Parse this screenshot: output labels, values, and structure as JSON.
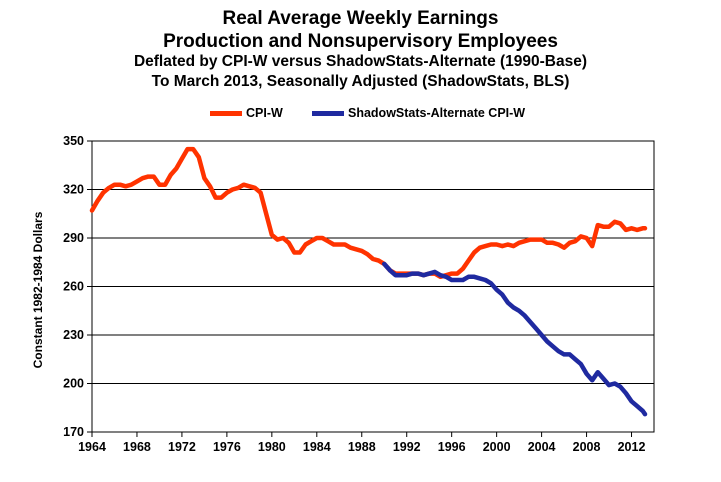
{
  "chart_data": {
    "type": "line",
    "title": "Real Average Weekly Earnings",
    "subtitle_lines": [
      "Production and Nonsupervisory Employees",
      "Deflated by CPI-W versus ShadowStats-Alternate (1990-Base)",
      "To March 2013, Seasonally Adjusted (ShadowStats, BLS)"
    ],
    "xlabel": "",
    "ylabel": "Constant 1982-1984 Dollars",
    "xlim": [
      1964,
      2014
    ],
    "ylim": [
      170,
      350
    ],
    "x_ticks": [
      1964,
      1968,
      1972,
      1976,
      1980,
      1984,
      1988,
      1992,
      1996,
      2000,
      2004,
      2008,
      2012
    ],
    "y_ticks": [
      170,
      200,
      230,
      260,
      290,
      320,
      350
    ],
    "grid": "horizontal",
    "legend_position": "top-center",
    "series": [
      {
        "name": "CPI-W",
        "color": "#ff3300",
        "x": [
          1964.0,
          1964.5,
          1965.0,
          1965.5,
          1966.0,
          1966.5,
          1967.0,
          1967.5,
          1968.0,
          1968.5,
          1969.0,
          1969.5,
          1970.0,
          1970.5,
          1971.0,
          1971.5,
          1972.0,
          1972.5,
          1973.0,
          1973.5,
          1974.0,
          1974.5,
          1975.0,
          1975.5,
          1976.0,
          1976.5,
          1977.0,
          1977.5,
          1978.0,
          1978.5,
          1979.0,
          1979.5,
          1980.0,
          1980.5,
          1981.0,
          1981.5,
          1982.0,
          1982.5,
          1983.0,
          1983.5,
          1984.0,
          1984.5,
          1985.0,
          1985.5,
          1986.0,
          1986.5,
          1987.0,
          1987.5,
          1988.0,
          1988.5,
          1989.0,
          1989.5,
          1990.0,
          1990.5,
          1991.0,
          1991.5,
          1992.0,
          1992.5,
          1993.0,
          1993.5,
          1994.0,
          1994.5,
          1995.0,
          1995.5,
          1996.0,
          1996.5,
          1997.0,
          1997.5,
          1998.0,
          1998.5,
          1999.0,
          1999.5,
          2000.0,
          2000.5,
          2001.0,
          2001.5,
          2002.0,
          2002.5,
          2003.0,
          2003.5,
          2004.0,
          2004.5,
          2005.0,
          2005.5,
          2006.0,
          2006.5,
          2007.0,
          2007.5,
          2008.0,
          2008.5,
          2009.0,
          2009.5,
          2010.0,
          2010.5,
          2011.0,
          2011.5,
          2012.0,
          2012.5,
          2013.0,
          2013.2
        ],
        "values": [
          307,
          313,
          318,
          321,
          323,
          323,
          322,
          323,
          325,
          327,
          328,
          328,
          323,
          323,
          329,
          333,
          339,
          345,
          345,
          340,
          327,
          322,
          315,
          315,
          318,
          320,
          321,
          323,
          322,
          321,
          318,
          305,
          292,
          289,
          290,
          287,
          281,
          281,
          286,
          288,
          290,
          290,
          288,
          286,
          286,
          286,
          284,
          283,
          282,
          280,
          277,
          276,
          274,
          270,
          268,
          268,
          268,
          268,
          268,
          267,
          268,
          268,
          266,
          267,
          268,
          268,
          271,
          276,
          281,
          284,
          285,
          286,
          286,
          285,
          286,
          285,
          287,
          288,
          289,
          289,
          289,
          287,
          287,
          286,
          284,
          287,
          288,
          291,
          290,
          285,
          298,
          297,
          297,
          300,
          299,
          295,
          296,
          295,
          296,
          296
        ]
      },
      {
        "name": "ShadowStats-Alternate CPI-W",
        "color": "#1f2aa0",
        "x": [
          1990.0,
          1990.5,
          1991.0,
          1991.5,
          1992.0,
          1992.5,
          1993.0,
          1993.5,
          1994.0,
          1994.5,
          1995.0,
          1995.5,
          1996.0,
          1996.5,
          1997.0,
          1997.5,
          1998.0,
          1998.5,
          1999.0,
          1999.5,
          2000.0,
          2000.5,
          2001.0,
          2001.5,
          2002.0,
          2002.5,
          2003.0,
          2003.5,
          2004.0,
          2004.5,
          2005.0,
          2005.5,
          2006.0,
          2006.5,
          2007.0,
          2007.5,
          2008.0,
          2008.5,
          2009.0,
          2009.5,
          2010.0,
          2010.5,
          2011.0,
          2011.5,
          2012.0,
          2012.5,
          2013.0,
          2013.2
        ],
        "values": [
          274,
          270,
          267,
          267,
          267,
          268,
          268,
          267,
          268,
          269,
          267,
          266,
          264,
          264,
          264,
          266,
          266,
          265,
          264,
          262,
          258,
          255,
          250,
          247,
          245,
          242,
          238,
          234,
          230,
          226,
          223,
          220,
          218,
          218,
          215,
          212,
          206,
          202,
          207,
          203,
          199,
          200,
          198,
          194,
          189,
          186,
          183,
          181
        ]
      }
    ]
  }
}
